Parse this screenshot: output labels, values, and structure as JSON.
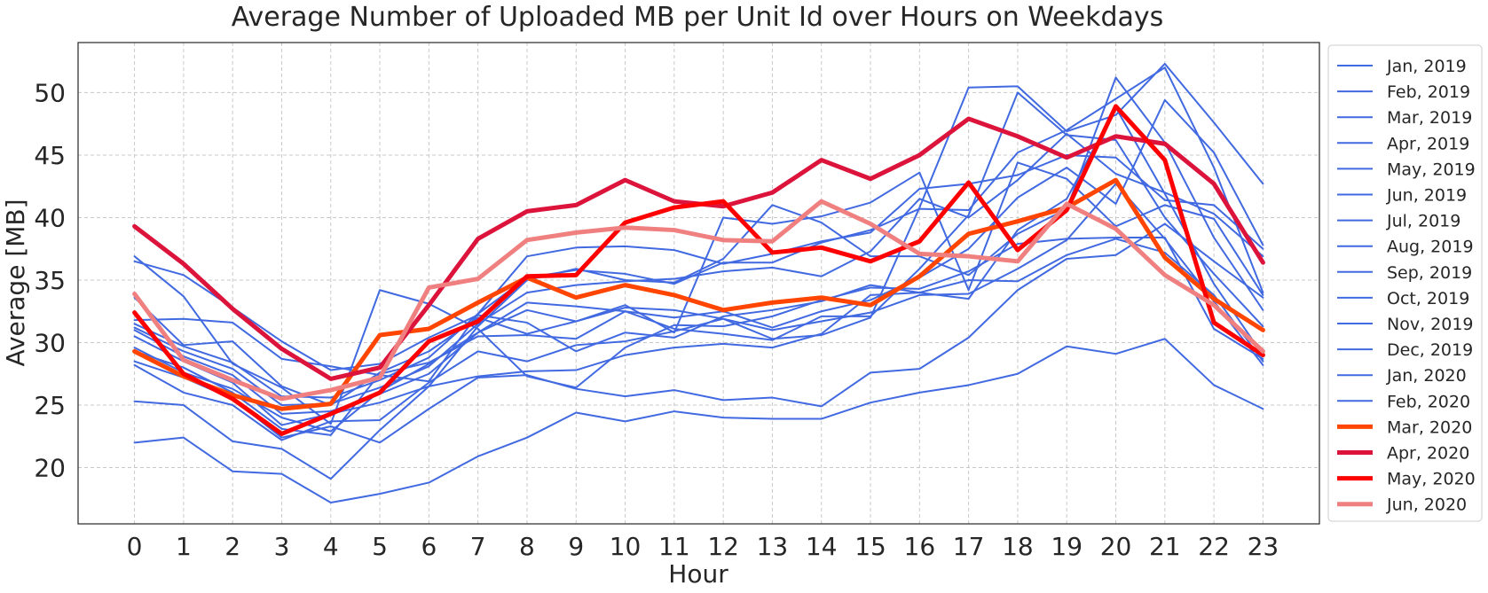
{
  "chart_data": {
    "type": "line",
    "title": "Average Number of Uploaded MB per Unit Id over Hours on Weekdays",
    "xlabel": "Hour",
    "ylabel": "Average [MB]",
    "x": [
      0,
      1,
      2,
      3,
      4,
      5,
      6,
      7,
      8,
      9,
      10,
      11,
      12,
      13,
      14,
      15,
      16,
      17,
      18,
      19,
      20,
      21,
      22,
      23
    ],
    "x_tick_labels": [
      "0",
      "1",
      "2",
      "3",
      "4",
      "5",
      "6",
      "7",
      "8",
      "9",
      "10",
      "11",
      "12",
      "13",
      "14",
      "15",
      "16",
      "17",
      "18",
      "19",
      "20",
      "21",
      "22",
      "23"
    ],
    "xlim": [
      -1.15,
      24.15
    ],
    "ylim": [
      15.5,
      54.0
    ],
    "y_ticks": [
      20,
      25,
      30,
      35,
      40,
      45,
      50
    ],
    "y_tick_labels": [
      "20",
      "25",
      "30",
      "35",
      "40",
      "45",
      "50"
    ],
    "grid": true,
    "legend_position": "outside-right",
    "colors": {
      "baseline": "#4169e1",
      "mar_2020": "#ff4500",
      "apr_2020": "#dc143c",
      "may_2020": "#ff0000",
      "jun_2020": "#f08080",
      "grid": "#c8c8c8",
      "frame": "#262626"
    },
    "series": [
      {
        "name": "Jan, 2019",
        "color": "#4169e1",
        "width": 2,
        "values": [
          22.0,
          22.4,
          19.7,
          19.5,
          17.2,
          17.9,
          18.8,
          20.9,
          22.4,
          24.4,
          23.7,
          24.5,
          24.0,
          23.9,
          23.9,
          25.2,
          26.0,
          26.6,
          27.5,
          29.7,
          29.1,
          30.3,
          26.6,
          24.7
        ]
      },
      {
        "name": "Feb, 2019",
        "color": "#4169e1",
        "width": 2,
        "values": [
          25.3,
          25.0,
          22.1,
          21.5,
          19.1,
          23.0,
          26.5,
          27.3,
          27.7,
          27.8,
          29.0,
          29.6,
          29.9,
          29.6,
          30.7,
          33.8,
          34.0,
          35.0,
          34.9,
          37.0,
          38.3,
          37.2,
          33.8,
          28.5
        ]
      },
      {
        "name": "Mar, 2019",
        "color": "#4169e1",
        "width": 2,
        "values": [
          28.2,
          26.0,
          25.0,
          22.2,
          23.7,
          23.8,
          26.8,
          29.3,
          28.5,
          29.8,
          30.1,
          30.9,
          31.9,
          31.0,
          31.7,
          32.4,
          33.8,
          33.9,
          35.9,
          38.2,
          42.7,
          38.3,
          33.3,
          28.2
        ]
      },
      {
        "name": "Apr, 2019",
        "color": "#4169e1",
        "width": 2,
        "values": [
          28.5,
          27.2,
          25.5,
          22.4,
          23.3,
          22.0,
          24.7,
          27.2,
          27.4,
          26.3,
          25.7,
          26.2,
          25.4,
          25.6,
          24.9,
          27.6,
          27.9,
          30.4,
          34.2,
          36.7,
          37.0,
          39.5,
          36.5,
          33.6
        ]
      },
      {
        "name": "May, 2019",
        "color": "#4169e1",
        "width": 2,
        "values": [
          29.3,
          28.0,
          26.0,
          23.1,
          22.6,
          27.5,
          28.4,
          30.5,
          30.6,
          30.3,
          32.5,
          31.1,
          30.7,
          30.2,
          32.1,
          32.1,
          35.9,
          40.2,
          50.0,
          46.6,
          46.2,
          40.0,
          35.5,
          31.3
        ]
      },
      {
        "name": "Jun, 2019",
        "color": "#4169e1",
        "width": 2,
        "values": [
          29.6,
          27.6,
          26.3,
          24.0,
          22.9,
          26.1,
          28.3,
          30.8,
          32.6,
          31.7,
          32.8,
          32.6,
          31.9,
          30.3,
          30.6,
          32.0,
          40.8,
          50.4,
          50.5,
          46.9,
          48.2,
          52.3,
          47.6,
          42.7
        ]
      },
      {
        "name": "Jul, 2019",
        "color": "#4169e1",
        "width": 2,
        "values": [
          30.5,
          28.5,
          26.8,
          23.4,
          24.3,
          25.2,
          26.5,
          31.3,
          35.0,
          35.9,
          35.0,
          34.8,
          36.7,
          41.0,
          39.6,
          36.9,
          36.9,
          35.4,
          38.7,
          40.7,
          51.2,
          46.0,
          38.4,
          32.6
        ]
      },
      {
        "name": "Aug, 2019",
        "color": "#4169e1",
        "width": 2,
        "values": [
          31.0,
          28.9,
          27.4,
          24.3,
          24.5,
          25.9,
          27.5,
          30.8,
          33.2,
          32.9,
          32.5,
          32.0,
          32.5,
          31.2,
          32.5,
          33.4,
          35.2,
          37.5,
          41.6,
          44.0,
          41.1,
          49.4,
          45.2,
          37.8
        ]
      },
      {
        "name": "Sep, 2019",
        "color": "#4169e1",
        "width": 2,
        "values": [
          31.2,
          29.3,
          27.9,
          25.0,
          25.1,
          26.4,
          28.1,
          31.5,
          34.0,
          34.6,
          34.9,
          35.1,
          35.7,
          36.0,
          35.3,
          37.3,
          41.5,
          40.0,
          43.0,
          46.7,
          43.5,
          42.0,
          40.3,
          36.9
        ]
      },
      {
        "name": "Oct, 2019",
        "color": "#4169e1",
        "width": 2,
        "values": [
          31.5,
          29.7,
          28.4,
          25.7,
          25.6,
          27.0,
          28.8,
          32.3,
          35.2,
          35.8,
          35.5,
          34.7,
          36.4,
          36.4,
          38.0,
          39.0,
          40.7,
          40.6,
          45.2,
          47.0,
          49.5,
          52.0,
          44.0,
          34.0
        ]
      },
      {
        "name": "Nov, 2019",
        "color": "#4169e1",
        "width": 2,
        "values": [
          36.5,
          35.4,
          32.8,
          30.1,
          27.8,
          28.3,
          30.4,
          32.2,
          31.6,
          29.3,
          30.8,
          30.4,
          32.1,
          32.6,
          33.3,
          34.6,
          34.0,
          33.5,
          39.0,
          41.5,
          48.8,
          41.9,
          34.7,
          29.0
        ]
      },
      {
        "name": "Dec, 2019",
        "color": "#4169e1",
        "width": 2,
        "values": [
          33.6,
          29.8,
          30.1,
          26.5,
          25.0,
          27.6,
          29.3,
          32.0,
          30.7,
          31.7,
          33.0,
          30.8,
          40.0,
          39.5,
          40.1,
          41.2,
          43.6,
          34.2,
          44.4,
          43.1,
          39.3,
          41.0,
          39.9,
          33.8
        ]
      },
      {
        "name": "Jan, 2020",
        "color": "#4169e1",
        "width": 2,
        "values": [
          31.8,
          31.9,
          31.6,
          28.7,
          28.1,
          27.4,
          26.9,
          32.3,
          36.9,
          37.6,
          37.7,
          37.4,
          36.3,
          37.1,
          38.1,
          38.8,
          42.3,
          42.7,
          43.4,
          45.0,
          44.8,
          41.4,
          41.0,
          37.5
        ]
      },
      {
        "name": "Feb, 2020",
        "color": "#4169e1",
        "width": 2,
        "values": [
          36.9,
          33.7,
          28.3,
          26.4,
          23.5,
          34.2,
          33.1,
          31.1,
          27.3,
          26.4,
          29.6,
          31.4,
          31.3,
          32.1,
          33.4,
          34.4,
          34.3,
          35.7,
          37.9,
          38.3,
          38.4,
          38.4,
          31.1,
          28.7
        ]
      },
      {
        "name": "Mar, 2020",
        "color": "#ff4500",
        "width": 5,
        "values": [
          29.3,
          27.3,
          25.8,
          24.7,
          25.1,
          30.6,
          31.1,
          33.2,
          35.2,
          33.6,
          34.6,
          33.8,
          32.6,
          33.2,
          33.6,
          33.0,
          35.3,
          38.7,
          39.7,
          40.8,
          43.0,
          36.8,
          33.5,
          31.0
        ]
      },
      {
        "name": "Apr, 2020",
        "color": "#dc143c",
        "width": 5,
        "values": [
          39.3,
          36.3,
          32.7,
          29.5,
          27.1,
          28.0,
          33.0,
          38.3,
          40.5,
          41.0,
          43.0,
          41.3,
          40.9,
          42.0,
          44.6,
          43.1,
          45.0,
          47.9,
          46.5,
          44.8,
          46.5,
          45.9,
          42.7,
          36.4
        ]
      },
      {
        "name": "May, 2020",
        "color": "#ff0000",
        "width": 5,
        "values": [
          32.4,
          27.5,
          25.5,
          22.7,
          24.3,
          26.0,
          30.1,
          31.7,
          35.3,
          35.4,
          39.6,
          40.8,
          41.3,
          37.2,
          37.6,
          36.5,
          38.1,
          42.8,
          37.4,
          40.6,
          48.9,
          44.6,
          31.6,
          29.0
        ]
      },
      {
        "name": "Jun, 2020",
        "color": "#f08080",
        "width": 5,
        "values": [
          33.9,
          28.6,
          27.0,
          25.5,
          26.2,
          27.2,
          34.4,
          35.1,
          38.2,
          38.8,
          39.2,
          39.0,
          38.2,
          38.1,
          41.3,
          39.5,
          37.1,
          36.9,
          36.5,
          41.1,
          39.1,
          35.4,
          33.0,
          29.3
        ]
      }
    ]
  }
}
